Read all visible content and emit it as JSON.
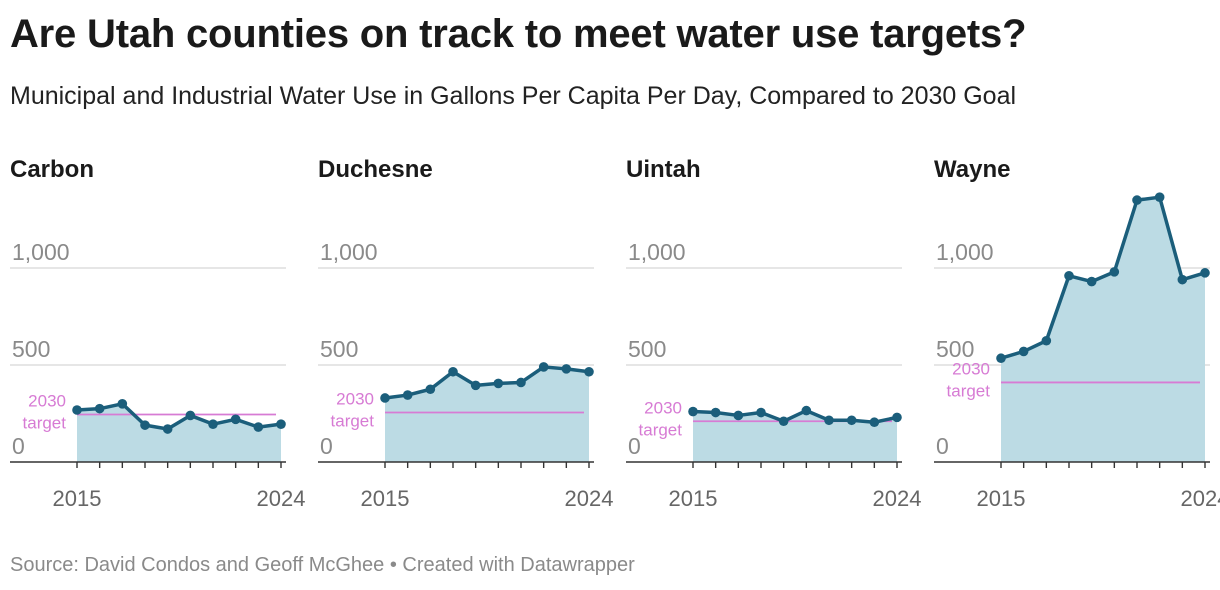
{
  "title": "Are Utah counties on track to meet water use targets?",
  "subtitle": "Municipal and Industrial Water Use in Gallons Per Capita Per Day, Compared to 2030 Goal",
  "footer": {
    "source": "Source: David Condos and Geoff McGhee",
    "separator": " • ",
    "credit": "Created with Datawrapper"
  },
  "colors": {
    "line": "#1b5e7b",
    "area": "#bcdbe4",
    "target": "#d77bd4",
    "grid": "#dddddd",
    "axis_text": "#8a8a8a"
  },
  "chart_data": [
    {
      "type": "area",
      "title": "Carbon",
      "x": [
        2015,
        2016,
        2017,
        2018,
        2019,
        2020,
        2021,
        2022,
        2023,
        2024
      ],
      "values": [
        268,
        275,
        300,
        190,
        170,
        240,
        195,
        220,
        180,
        195
      ],
      "target": 245,
      "target_label": [
        "2030",
        "target"
      ],
      "ylim": [
        0,
        1000
      ],
      "y_ticks": [
        0,
        500,
        1000
      ],
      "y_tick_labels": [
        "0",
        "500",
        "1,000"
      ],
      "x_ticks": [
        2015,
        2024
      ],
      "x_tick_labels": [
        "2015",
        "2024"
      ],
      "grid": true
    },
    {
      "type": "area",
      "title": "Duchesne",
      "x": [
        2015,
        2016,
        2017,
        2018,
        2019,
        2020,
        2021,
        2022,
        2023,
        2024
      ],
      "values": [
        330,
        345,
        375,
        465,
        395,
        405,
        410,
        490,
        480,
        465
      ],
      "target": 255,
      "target_label": [
        "2030",
        "target"
      ],
      "ylim": [
        0,
        1000
      ],
      "y_ticks": [
        0,
        500,
        1000
      ],
      "y_tick_labels": [
        "0",
        "500",
        "1,000"
      ],
      "x_ticks": [
        2015,
        2024
      ],
      "x_tick_labels": [
        "2015",
        "2024"
      ],
      "grid": true
    },
    {
      "type": "area",
      "title": "Uintah",
      "x": [
        2015,
        2016,
        2017,
        2018,
        2019,
        2020,
        2021,
        2022,
        2023,
        2024
      ],
      "values": [
        260,
        255,
        240,
        255,
        210,
        265,
        215,
        215,
        205,
        230
      ],
      "target": 210,
      "target_label": [
        "2030",
        "target"
      ],
      "ylim": [
        0,
        1000
      ],
      "y_ticks": [
        0,
        500,
        1000
      ],
      "y_tick_labels": [
        "0",
        "500",
        "1,000"
      ],
      "x_ticks": [
        2015,
        2024
      ],
      "x_tick_labels": [
        "2015",
        "2024"
      ],
      "grid": true
    },
    {
      "type": "area",
      "title": "Wayne",
      "x": [
        2015,
        2016,
        2017,
        2018,
        2019,
        2020,
        2021,
        2022,
        2023,
        2024
      ],
      "values": [
        535,
        570,
        625,
        960,
        930,
        980,
        1350,
        1365,
        940,
        975
      ],
      "target": 410,
      "target_label": [
        "2030",
        "target"
      ],
      "ylim": [
        0,
        1000
      ],
      "y_ticks": [
        0,
        500,
        1000
      ],
      "y_tick_labels": [
        "0",
        "500",
        "1,000"
      ],
      "x_ticks": [
        2015,
        2024
      ],
      "x_tick_labels": [
        "2015",
        "2024"
      ],
      "grid": true
    }
  ]
}
